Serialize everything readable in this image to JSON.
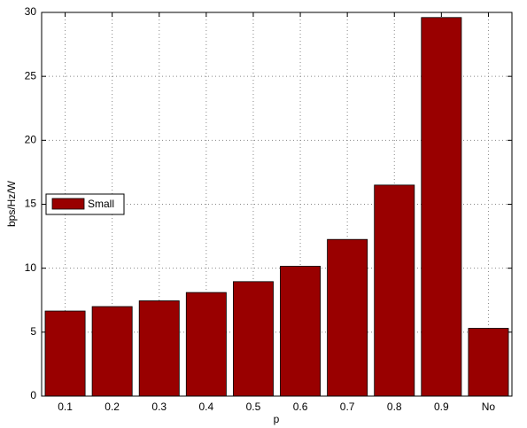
{
  "chart_data": {
    "type": "bar",
    "xlabel": "p",
    "ylabel": "bps/Hz/W",
    "categories": [
      "0.1",
      "0.2",
      "0.3",
      "0.4",
      "0.5",
      "0.6",
      "0.7",
      "0.8",
      "0.9",
      "No"
    ],
    "series": [
      {
        "name": "Small",
        "color": "#990000",
        "values": [
          6.65,
          7.0,
          7.45,
          8.1,
          8.95,
          10.15,
          12.25,
          16.5,
          29.6,
          5.3
        ]
      }
    ],
    "ylim": [
      0,
      30
    ],
    "yticks": [
      0,
      5,
      10,
      15,
      20,
      25,
      30
    ],
    "grid": true,
    "legend": "left"
  }
}
